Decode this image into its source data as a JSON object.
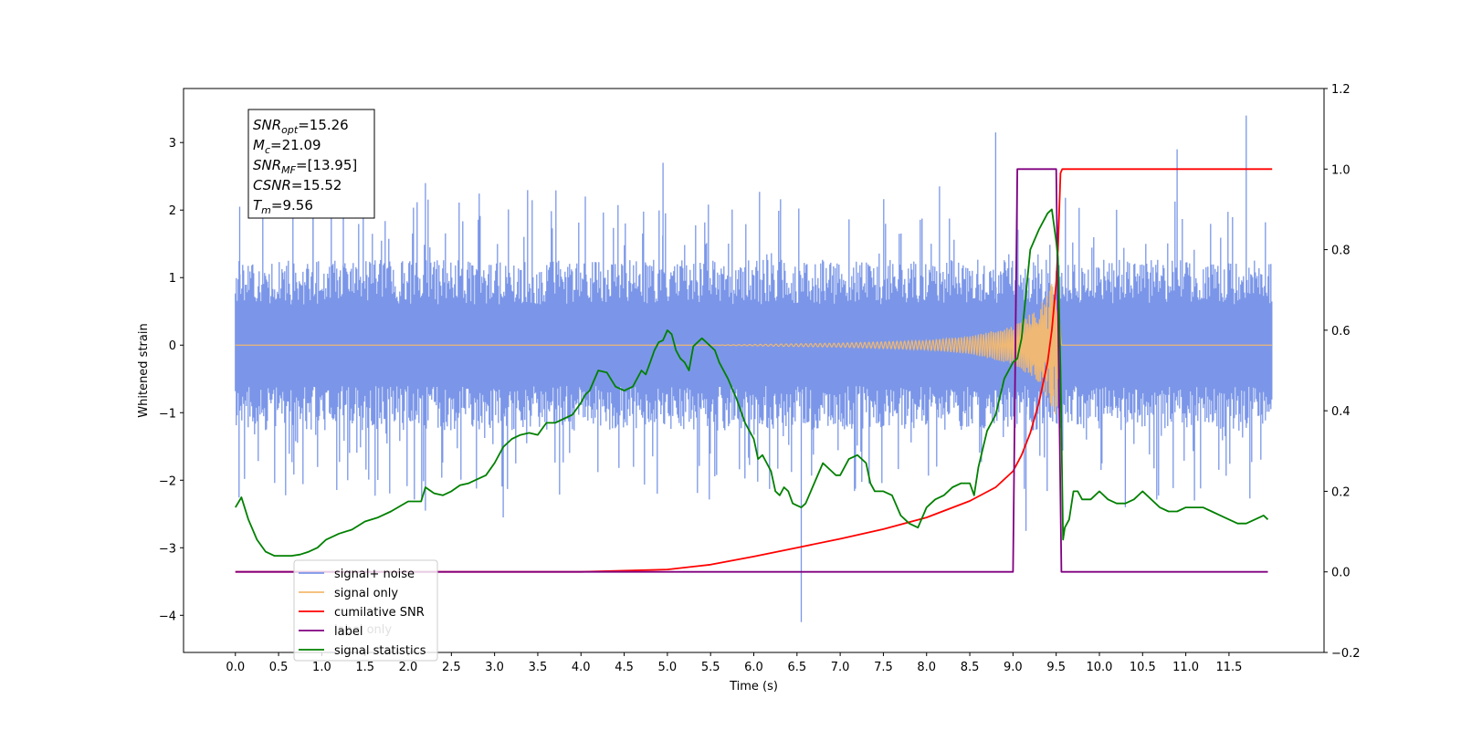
{
  "chart_data": {
    "type": "line",
    "title": "",
    "xlabel": "Time (s)",
    "ylabel": "Whitened strain",
    "xlim": [
      -0.6,
      12.6
    ],
    "ylim": [
      -4.55,
      3.8
    ],
    "y2lim": [
      -0.2,
      1.2
    ],
    "x_ticks": [
      0.0,
      0.5,
      1.0,
      1.5,
      2.0,
      2.5,
      3.0,
      3.5,
      4.0,
      4.5,
      5.0,
      5.5,
      6.0,
      6.5,
      7.0,
      7.5,
      8.0,
      8.5,
      9.0,
      9.5,
      10.0,
      10.5,
      11.0,
      11.5
    ],
    "x_tick_labels": [
      "0.0",
      "0.5",
      "1.0",
      "1.5",
      "2.0",
      "2.5",
      "3.0",
      "3.5",
      "4.0",
      "4.5",
      "5.0",
      "5.5",
      "6.0",
      "6.5",
      "7.0",
      "7.5",
      "8.0",
      "8.5",
      "9.0",
      "9.5",
      "10.0",
      "10.5",
      "11.0",
      "11.5"
    ],
    "y_ticks": [
      -4,
      -3,
      -2,
      -1,
      0,
      1,
      2,
      3
    ],
    "y_tick_labels": [
      "−4",
      "−3",
      "−2",
      "−1",
      "0",
      "1",
      "2",
      "3"
    ],
    "y2_ticks": [
      -0.2,
      0.0,
      0.2,
      0.4,
      0.6,
      0.8,
      1.0,
      1.2
    ],
    "y2_tick_labels": [
      "−0.2",
      "0.0",
      "0.2",
      "0.4",
      "0.6",
      "0.8",
      "1.0",
      "1.2"
    ],
    "grid": false,
    "legend_position": "lower-left",
    "annotation": [
      {
        "sym": "SNR",
        "sub": "opt",
        "value": "=15.26"
      },
      {
        "sym": "M",
        "sub": "c",
        "value": "=21.09"
      },
      {
        "sym": "SNR",
        "sub": "MF",
        "value": "=[13.95]"
      },
      {
        "sym": "CSNR",
        "sub": "",
        "value": "=15.52"
      },
      {
        "sym": "T",
        "sub": "m",
        "value": "=9.56"
      }
    ],
    "legend": [
      "signal+ noise",
      "signal only",
      "cumilative SNR",
      "label",
      "signal statistics"
    ],
    "hidden_legend_text": "label only",
    "series": [
      {
        "name": "signal+ noise",
        "axis": "left",
        "color": "#7b96e8",
        "kind": "noise",
        "x_range": [
          0.0,
          12.0
        ],
        "band": 1.1,
        "spikes": [
          [
            0.05,
            2.05
          ],
          [
            0.9,
            2.15
          ],
          [
            1.25,
            2.15
          ],
          [
            1.3,
            -2.0
          ],
          [
            2.2,
            2.4
          ],
          [
            2.2,
            -2.45
          ],
          [
            3.1,
            -2.55
          ],
          [
            4.05,
            2.2
          ],
          [
            4.95,
            2.7
          ],
          [
            6.55,
            -4.1
          ],
          [
            8.15,
            2.35
          ],
          [
            8.8,
            3.15
          ],
          [
            9.05,
            2.5
          ],
          [
            9.15,
            -2.75
          ],
          [
            10.3,
            -2.4
          ],
          [
            10.9,
            2.9
          ],
          [
            11.7,
            3.4
          ],
          [
            11.1,
            -2.3
          ]
        ]
      },
      {
        "name": "signal only",
        "axis": "left",
        "color": "#f5b96e",
        "kind": "chirp",
        "x_range": [
          0.0,
          12.0
        ],
        "amplitude_envelope": [
          [
            0.0,
            0.0
          ],
          [
            5.5,
            0.0
          ],
          [
            7.0,
            0.03
          ],
          [
            8.0,
            0.07
          ],
          [
            8.5,
            0.13
          ],
          [
            9.0,
            0.28
          ],
          [
            9.3,
            0.55
          ],
          [
            9.5,
            1.05
          ],
          [
            9.56,
            0.0
          ],
          [
            12.0,
            0.0
          ]
        ]
      },
      {
        "name": "cumilative SNR",
        "axis": "right",
        "color": "#ff0000",
        "x": [
          0.0,
          3.0,
          4.0,
          5.0,
          5.5,
          6.0,
          6.5,
          7.0,
          7.5,
          8.0,
          8.5,
          8.8,
          9.0,
          9.1,
          9.2,
          9.3,
          9.4,
          9.45,
          9.5,
          9.52,
          9.55,
          9.57,
          9.58,
          12.0
        ],
        "y": [
          0.0,
          0.0,
          0.0,
          0.006,
          0.018,
          0.038,
          0.06,
          0.082,
          0.106,
          0.135,
          0.176,
          0.21,
          0.25,
          0.29,
          0.345,
          0.42,
          0.52,
          0.6,
          0.72,
          0.8,
          0.99,
          1.0,
          1.0,
          1.0
        ]
      },
      {
        "name": "label",
        "axis": "right",
        "color": "#800080",
        "x": [
          0.0,
          9.0,
          9.05,
          9.5,
          9.56,
          11.95
        ],
        "y": [
          0.0,
          0.0,
          1.0,
          1.0,
          0.0,
          0.0
        ]
      },
      {
        "name": "signal statistics",
        "axis": "right",
        "color": "#008000",
        "x": [
          0.0,
          0.07,
          0.15,
          0.25,
          0.35,
          0.45,
          0.55,
          0.65,
          0.75,
          0.85,
          0.95,
          1.05,
          1.2,
          1.35,
          1.5,
          1.65,
          1.8,
          2.0,
          2.15,
          2.2,
          2.3,
          2.4,
          2.5,
          2.6,
          2.7,
          2.8,
          2.9,
          3.0,
          3.1,
          3.2,
          3.3,
          3.4,
          3.5,
          3.6,
          3.7,
          3.8,
          3.9,
          4.0,
          4.05,
          4.1,
          4.2,
          4.3,
          4.4,
          4.5,
          4.6,
          4.7,
          4.75,
          4.8,
          4.85,
          4.9,
          4.95,
          5.0,
          5.05,
          5.1,
          5.15,
          5.2,
          5.25,
          5.3,
          5.4,
          5.45,
          5.5,
          5.55,
          5.6,
          5.7,
          5.8,
          5.9,
          6.0,
          6.05,
          6.1,
          6.15,
          6.2,
          6.25,
          6.3,
          6.35,
          6.4,
          6.45,
          6.5,
          6.55,
          6.6,
          6.7,
          6.8,
          6.9,
          6.95,
          7.0,
          7.1,
          7.2,
          7.3,
          7.35,
          7.4,
          7.5,
          7.6,
          7.7,
          7.8,
          7.9,
          8.0,
          8.1,
          8.2,
          8.3,
          8.4,
          8.5,
          8.55,
          8.6,
          8.7,
          8.8,
          8.9,
          9.0,
          9.05,
          9.1,
          9.2,
          9.3,
          9.35,
          9.4,
          9.45,
          9.5,
          9.52,
          9.55,
          9.58,
          9.6,
          9.65,
          9.7,
          9.75,
          9.8,
          9.9,
          10.0,
          10.1,
          10.2,
          10.3,
          10.4,
          10.5,
          10.6,
          10.7,
          10.8,
          10.9,
          11.0,
          11.1,
          11.2,
          11.3,
          11.4,
          11.5,
          11.6,
          11.7,
          11.8,
          11.9,
          11.95
        ],
        "y": [
          0.16,
          0.185,
          0.13,
          0.08,
          0.05,
          0.04,
          0.04,
          0.04,
          0.043,
          0.05,
          0.06,
          0.08,
          0.095,
          0.105,
          0.125,
          0.135,
          0.15,
          0.175,
          0.175,
          0.21,
          0.195,
          0.19,
          0.2,
          0.215,
          0.22,
          0.23,
          0.24,
          0.27,
          0.31,
          0.33,
          0.34,
          0.345,
          0.34,
          0.37,
          0.37,
          0.38,
          0.39,
          0.42,
          0.44,
          0.45,
          0.5,
          0.495,
          0.46,
          0.45,
          0.46,
          0.5,
          0.49,
          0.52,
          0.55,
          0.57,
          0.575,
          0.6,
          0.59,
          0.55,
          0.53,
          0.52,
          0.5,
          0.56,
          0.58,
          0.57,
          0.56,
          0.55,
          0.52,
          0.48,
          0.43,
          0.37,
          0.33,
          0.28,
          0.29,
          0.27,
          0.25,
          0.2,
          0.19,
          0.21,
          0.2,
          0.17,
          0.165,
          0.16,
          0.17,
          0.22,
          0.27,
          0.25,
          0.24,
          0.24,
          0.28,
          0.29,
          0.27,
          0.22,
          0.2,
          0.2,
          0.19,
          0.14,
          0.12,
          0.11,
          0.16,
          0.18,
          0.19,
          0.21,
          0.22,
          0.22,
          0.19,
          0.26,
          0.35,
          0.39,
          0.48,
          0.52,
          0.53,
          0.58,
          0.8,
          0.85,
          0.87,
          0.89,
          0.9,
          0.82,
          0.78,
          0.5,
          0.08,
          0.11,
          0.13,
          0.2,
          0.2,
          0.18,
          0.18,
          0.2,
          0.18,
          0.17,
          0.17,
          0.18,
          0.2,
          0.18,
          0.16,
          0.15,
          0.15,
          0.16,
          0.16,
          0.16,
          0.15,
          0.14,
          0.13,
          0.12,
          0.12,
          0.13,
          0.14,
          0.13
        ]
      }
    ]
  }
}
